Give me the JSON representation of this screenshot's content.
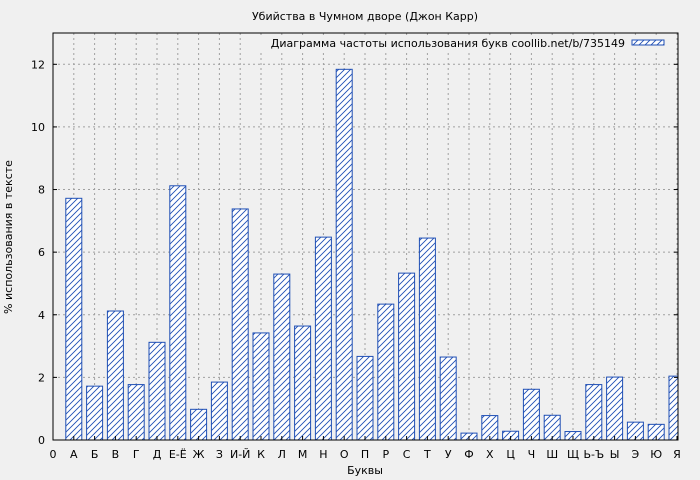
{
  "chart_data": {
    "type": "bar",
    "title": "Убийства в Чумном дворе (Джон Карр)",
    "xlabel": "Буквы",
    "ylabel": "% использования в тексте",
    "ylim": [
      0,
      13
    ],
    "yticks": [
      0,
      2,
      4,
      6,
      8,
      10,
      12
    ],
    "grid": true,
    "legend": {
      "position": "top-right",
      "label": "Диаграмма частоты использования букв coollib.net/b/735149"
    },
    "x_first_tick": "0",
    "categories": [
      "А",
      "Б",
      "В",
      "Г",
      "Д",
      "Е-Ё",
      "Ж",
      "З",
      "И-Й",
      "К",
      "Л",
      "М",
      "Н",
      "О",
      "П",
      "Р",
      "С",
      "Т",
      "У",
      "Ф",
      "Х",
      "Ц",
      "Ч",
      "Ш",
      "Щ",
      "Ь-Ъ",
      "Ы",
      "Э",
      "Ю",
      "Я"
    ],
    "series": [
      {
        "name": "Диаграмма частоты использования букв coollib.net/b/735149",
        "color": "#1f4fb5",
        "values": [
          7.72,
          1.72,
          4.12,
          1.77,
          3.12,
          8.12,
          0.98,
          1.85,
          7.38,
          3.42,
          5.3,
          3.64,
          6.48,
          11.84,
          2.67,
          4.34,
          5.33,
          6.45,
          2.65,
          0.22,
          0.78,
          0.28,
          1.62,
          0.79,
          0.27,
          1.77,
          2.01,
          0.57,
          0.5,
          2.04
        ]
      }
    ]
  }
}
